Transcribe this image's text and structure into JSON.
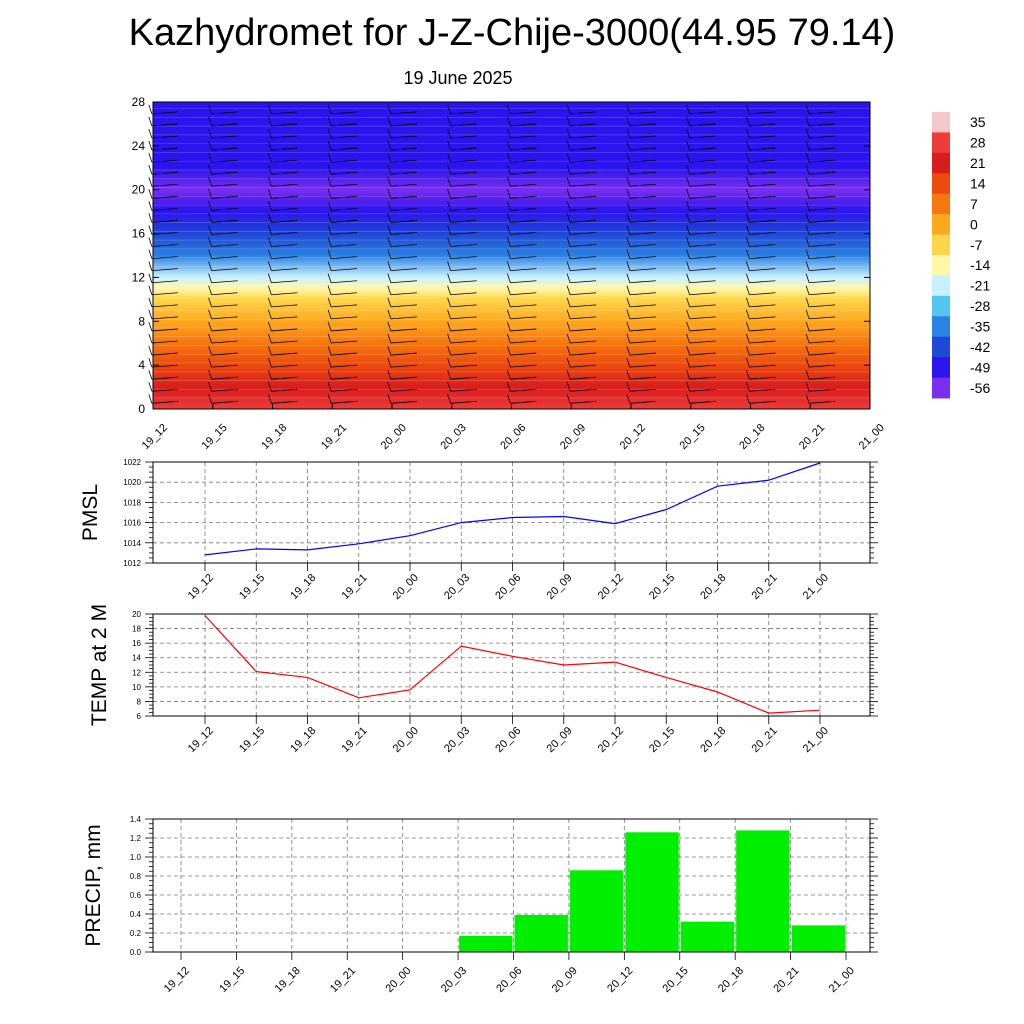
{
  "title": "Kazhydromet for J-Z-Chije-3000(44.95 79.14)",
  "subtitle": "19 June 2025",
  "time_labels": [
    "19_12",
    "19_15",
    "19_18",
    "19_21",
    "20_00",
    "20_03",
    "20_06",
    "20_09",
    "20_12",
    "20_15",
    "20_18",
    "20_21",
    "21_00"
  ],
  "chart_data": [
    {
      "type": "heatmap",
      "y_ticks": [
        "0",
        "4",
        "8",
        "12",
        "16",
        "20",
        "24",
        "28"
      ],
      "ylim": [
        0,
        28
      ],
      "x": [
        "19_12",
        "19_15",
        "19_18",
        "19_21",
        "20_00",
        "20_03",
        "20_06",
        "20_09",
        "20_12",
        "20_15",
        "20_18",
        "20_21",
        "21_00"
      ],
      "colorbar": {
        "labels": [
          "35",
          "28",
          "21",
          "14",
          "7",
          "0",
          "-7",
          "-14",
          "-21",
          "-28",
          "-35",
          "-42",
          "-49",
          "-56"
        ],
        "colors": [
          "#f5c8c8",
          "#ee3b3b",
          "#d91c1c",
          "#ec4a0e",
          "#f7760e",
          "#fca91e",
          "#ffd54a",
          "#fff7a8",
          "#c8f0ff",
          "#52c5f0",
          "#2b82e3",
          "#1f48d6",
          "#2b14ee",
          "#7a2ef0"
        ]
      },
      "profile": [
        {
          "level": 0,
          "value": 28
        },
        {
          "level": 2,
          "value": 20
        },
        {
          "level": 4,
          "value": 14
        },
        {
          "level": 6,
          "value": 7
        },
        {
          "level": 8,
          "value": 2
        },
        {
          "level": 10,
          "value": -5
        },
        {
          "level": 11,
          "value": -12
        },
        {
          "level": 12,
          "value": -20
        },
        {
          "level": 14,
          "value": -32
        },
        {
          "level": 16,
          "value": -42
        },
        {
          "level": 18,
          "value": -50
        },
        {
          "level": 20,
          "value": -56
        },
        {
          "level": 22,
          "value": -50
        },
        {
          "level": 24,
          "value": -52
        },
        {
          "level": 28,
          "value": -52
        }
      ]
    },
    {
      "type": "line",
      "ylabel": "PMSL",
      "ylim": [
        1012,
        1022
      ],
      "y_ticks": [
        "1012",
        "1014",
        "1016",
        "1018",
        "1020",
        "1022"
      ],
      "x": [
        "19_12",
        "19_15",
        "19_18",
        "19_21",
        "20_00",
        "20_03",
        "20_06",
        "20_09",
        "20_12",
        "20_15",
        "20_18",
        "20_21",
        "21_00"
      ],
      "values": [
        1012.8,
        1013.4,
        1013.3,
        1013.9,
        1014.7,
        1016.0,
        1016.5,
        1016.6,
        1015.9,
        1017.3,
        1019.6,
        1020.2,
        1021.9
      ],
      "color": "#0000ff"
    },
    {
      "type": "line",
      "ylabel": "TEMP at 2 M",
      "ylim": [
        6,
        20
      ],
      "y_ticks": [
        "6",
        "8",
        "10",
        "12",
        "14",
        "16",
        "18",
        "20"
      ],
      "x": [
        "19_12",
        "19_15",
        "19_18",
        "19_21",
        "20_00",
        "20_03",
        "20_06",
        "20_09",
        "20_12",
        "20_15",
        "20_18",
        "20_21",
        "21_00"
      ],
      "values": [
        19.8,
        12.1,
        11.3,
        8.5,
        9.6,
        15.6,
        14.2,
        13.0,
        13.4,
        11.3,
        9.3,
        6.4,
        6.8
      ],
      "color": "#ff0000"
    },
    {
      "type": "bar",
      "ylabel": "PRECIP, mm",
      "ylim": [
        0,
        1.4
      ],
      "y_ticks": [
        "0.0",
        "0.2",
        "0.4",
        "0.6",
        "0.8",
        "1.0",
        "1.2",
        "1.4"
      ],
      "categories": [
        "19_12",
        "19_15",
        "19_18",
        "19_21",
        "20_00",
        "20_03",
        "20_06",
        "20_09",
        "20_12",
        "20_15",
        "20_18",
        "20_21"
      ],
      "values": [
        0,
        0,
        0,
        0,
        0,
        0.17,
        0.39,
        0.86,
        1.26,
        0.32,
        1.28,
        0.28
      ],
      "color": "#00ee00"
    }
  ]
}
